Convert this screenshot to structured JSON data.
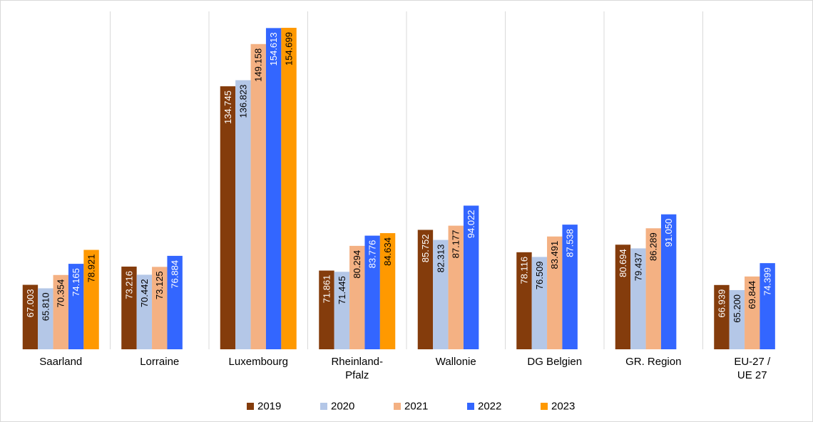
{
  "chart_data": {
    "type": "bar",
    "categories": [
      [
        "Saarland"
      ],
      [
        "Lorraine"
      ],
      [
        "Luxembourg"
      ],
      [
        "Rheinland-",
        "Pfalz"
      ],
      [
        "Wallonie"
      ],
      [
        "DG Belgien"
      ],
      [
        "GR. Region"
      ],
      [
        "EU-27 /",
        "UE 27"
      ]
    ],
    "series": [
      {
        "name": "2019",
        "color": "#843c0c",
        "values": [
          67.003,
          73.216,
          134.745,
          71.861,
          85.752,
          78.116,
          80.694,
          66.939
        ],
        "labels": [
          "67.003",
          "73.216",
          "134.745",
          "71.861",
          "85.752",
          "78.116",
          "80.694",
          "66.939"
        ]
      },
      {
        "name": "2020",
        "color": "#b4c7e7",
        "values": [
          65.81,
          70.442,
          136.823,
          71.445,
          82.313,
          76.509,
          79.437,
          65.2
        ],
        "labels": [
          "65.810",
          "70.442",
          "136.823",
          "71.445",
          "82.313",
          "76.509",
          "79.437",
          "65.200"
        ]
      },
      {
        "name": "2021",
        "color": "#f4b183",
        "values": [
          70.354,
          73.125,
          149.158,
          80.294,
          87.177,
          83.491,
          86.289,
          69.844
        ],
        "labels": [
          "70.354",
          "73.125",
          "149.158",
          "80.294",
          "87.177",
          "83.491",
          "86.289",
          "69.844"
        ]
      },
      {
        "name": "2022",
        "color": "#3366ff",
        "values": [
          74.165,
          76.884,
          154.613,
          83.776,
          94.022,
          87.538,
          91.05,
          74.399
        ],
        "labels": [
          "74.165",
          "76.884",
          "154.613",
          "83.776",
          "94.022",
          "87.538",
          "91.050",
          "74.399"
        ]
      },
      {
        "name": "2023",
        "color": "#ff9900",
        "values": [
          78.921,
          null,
          154.699,
          84.634,
          null,
          null,
          null,
          null
        ],
        "labels": [
          "78.921",
          null,
          "154.699",
          "84.634",
          null,
          null,
          null,
          null
        ]
      }
    ],
    "ymin": 45,
    "ymax": 154.7,
    "grid": "vertical separators between categories",
    "legend": "bottom-center",
    "title": "",
    "xlabel": "",
    "ylabel": ""
  }
}
